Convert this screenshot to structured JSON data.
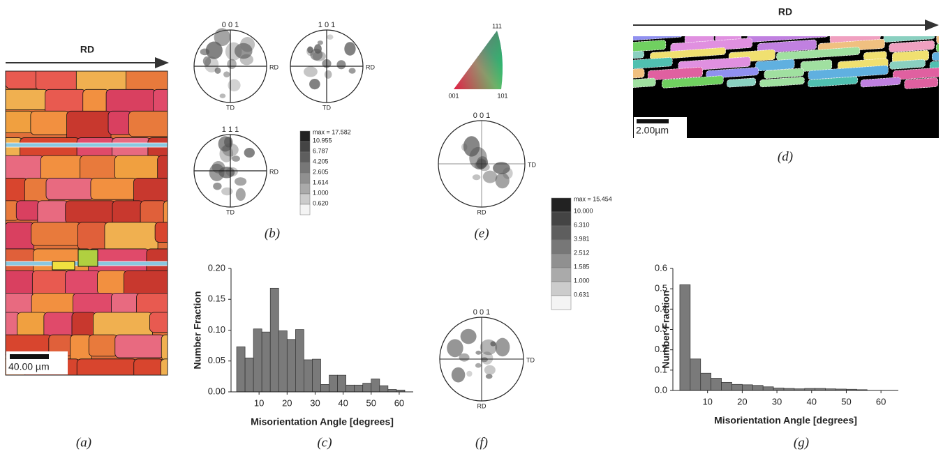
{
  "panel_labels": [
    "(a)",
    "(b)",
    "(c)",
    "(d)",
    "(e)",
    "(f)",
    "(g)"
  ],
  "map_a": {
    "direction": "RD",
    "scale_bar": "40.00 µm"
  },
  "map_d": {
    "direction": "RD",
    "scale_bar": "2.00µm"
  },
  "pole_figures_b": [
    {
      "plane": "0 0 1",
      "right": "RD",
      "bottom": "TD"
    },
    {
      "plane": "1 0 1",
      "right": "RD",
      "bottom": "TD"
    },
    {
      "plane": "1 1 1",
      "right": "RD",
      "bottom": "TD"
    }
  ],
  "legend_b": [
    "max = 17.582",
    "10.955",
    "6.787",
    "4.205",
    "2.605",
    "1.614",
    "1.000",
    "0.620"
  ],
  "ipf_triangle": {
    "top": "111",
    "left": "001",
    "right": "101"
  },
  "pole_figure_e": {
    "plane": "0 0 1",
    "right": "TD",
    "bottom": "RD"
  },
  "pole_figure_f": {
    "plane": "0 0 1",
    "right": "TD",
    "bottom": "RD"
  },
  "legend_e": [
    "max = 15.454",
    "10.000",
    "6.310",
    "3.981",
    "2.512",
    "1.585",
    "1.000",
    "0.631"
  ],
  "chart_data": [
    {
      "type": "histogram",
      "x_label": "Misorientation Angle [degrees]",
      "y_label": "Number Fraction",
      "color": "#7a7a7a",
      "bins": [
        2,
        5,
        8,
        11,
        14,
        17,
        20,
        23,
        26,
        29,
        32,
        35,
        38,
        41,
        44,
        47,
        50,
        53,
        56,
        59,
        62
      ],
      "values": [
        0.073,
        0.055,
        0.102,
        0.097,
        0.168,
        0.099,
        0.085,
        0.101,
        0.052,
        0.053,
        0.012,
        0.027,
        0.027,
        0.011,
        0.011,
        0.014,
        0.021,
        0.01,
        0.004,
        0.003
      ],
      "xlim": [
        0,
        65
      ],
      "ylim": [
        0,
        0.2
      ],
      "xticks": [
        10,
        20,
        30,
        40,
        50,
        60
      ],
      "yticks": [
        {
          "value": 0,
          "label": "0.00"
        },
        {
          "value": 0.05,
          "label": "0.05"
        },
        {
          "value": 0.1,
          "label": "0.10"
        },
        {
          "value": 0.15,
          "label": "0.15"
        },
        {
          "value": 0.2,
          "label": "0.20"
        }
      ]
    },
    {
      "type": "histogram",
      "x_label": "Misorientation Angle [degrees]",
      "y_label": "Number Fraction",
      "color": "#7a7a7a",
      "bins": [
        2,
        5,
        8,
        11,
        14,
        17,
        20,
        23,
        26,
        29,
        32,
        35,
        38,
        41,
        44,
        47,
        50,
        53,
        56
      ],
      "values": [
        0.52,
        0.155,
        0.085,
        0.06,
        0.04,
        0.03,
        0.028,
        0.025,
        0.018,
        0.012,
        0.01,
        0.008,
        0.01,
        0.01,
        0.008,
        0.007,
        0.006,
        0.004
      ],
      "xlim": [
        0,
        65
      ],
      "ylim": [
        0,
        0.6
      ],
      "xticks": [
        10,
        20,
        30,
        40,
        50,
        60
      ],
      "yticks": [
        {
          "value": 0,
          "label": "0.0"
        },
        0.1,
        0.2,
        0.3,
        0.4,
        0.5,
        0.6
      ]
    }
  ]
}
